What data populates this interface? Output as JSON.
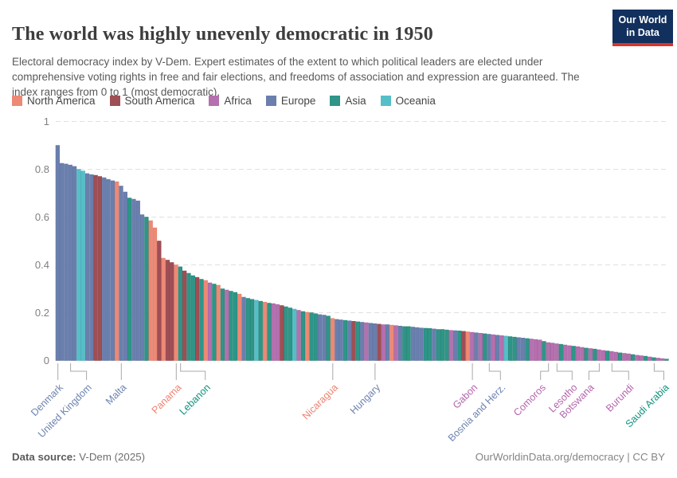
{
  "header": {
    "title": "The world was highly unevenly democratic in 1950",
    "subtitle": "Electoral democracy index by V-Dem. Expert estimates of the extent to which political leaders are elected under comprehensive voting rights in free and fair elections, and freedoms of association and expression are guaranteed. The index ranges from 0 to 1 (most democratic).",
    "logo": {
      "line1": "Our World",
      "line2": "in Data",
      "bg": "#12305e",
      "accent": "#d8352a"
    }
  },
  "legend": [
    {
      "code": "N",
      "label": "North America"
    },
    {
      "code": "S",
      "label": "South America"
    },
    {
      "code": "A",
      "label": "Africa"
    },
    {
      "code": "E",
      "label": "Europe"
    },
    {
      "code": "T",
      "label": "Asia"
    },
    {
      "code": "O",
      "label": "Oceania"
    }
  ],
  "colors": {
    "N": {
      "fill": "#ED8975",
      "stroke": "#DE7660",
      "text": "#ED8370"
    },
    "S": {
      "fill": "#9E4F55",
      "stroke": "#8A3B42",
      "text": "#9E4F55"
    },
    "A": {
      "fill": "#B470AF",
      "stroke": "#9F5A99",
      "text": "#B464AC"
    },
    "E": {
      "fill": "#6A7FAD",
      "stroke": "#58709F",
      "text": "#6D83AF"
    },
    "T": {
      "fill": "#2E9588",
      "stroke": "#20816F",
      "text": "#11917E"
    },
    "O": {
      "fill": "#55BFC7",
      "stroke": "#41A9B4",
      "text": "#4FB9C4"
    }
  },
  "chart_data": {
    "type": "bar",
    "title": "Electoral democracy index, 1950",
    "ylabel": "",
    "xlabel": "",
    "ylim": [
      0,
      1
    ],
    "yticks": [
      0,
      0.2,
      0.4,
      0.6,
      0.8,
      1
    ],
    "ytick_labels": [
      "0",
      "0.2",
      "0.4",
      "0.6",
      "0.8",
      "1"
    ],
    "grid": "horizontal-dashed",
    "legend_position": "top",
    "continent_codes": {
      "N": "North America",
      "S": "South America",
      "A": "Africa",
      "E": "Europe",
      "T": "Asia",
      "O": "Oceania"
    },
    "bars_format": [
      "index_value_0_to_1",
      "continent_code"
    ],
    "bars": [
      [
        0.9,
        "E"
      ],
      [
        0.825,
        "E"
      ],
      [
        0.822,
        "E"
      ],
      [
        0.818,
        "E"
      ],
      [
        0.812,
        "E"
      ],
      [
        0.8,
        "O"
      ],
      [
        0.793,
        "O"
      ],
      [
        0.782,
        "E"
      ],
      [
        0.778,
        "E"
      ],
      [
        0.775,
        "S"
      ],
      [
        0.77,
        "S"
      ],
      [
        0.765,
        "E"
      ],
      [
        0.758,
        "E"
      ],
      [
        0.752,
        "E"
      ],
      [
        0.748,
        "N"
      ],
      [
        0.73,
        "E"
      ],
      [
        0.705,
        "E"
      ],
      [
        0.68,
        "T"
      ],
      [
        0.675,
        "E"
      ],
      [
        0.668,
        "E"
      ],
      [
        0.61,
        "E"
      ],
      [
        0.6,
        "T"
      ],
      [
        0.585,
        "N"
      ],
      [
        0.555,
        "N"
      ],
      [
        0.5,
        "S"
      ],
      [
        0.428,
        "N"
      ],
      [
        0.42,
        "S"
      ],
      [
        0.41,
        "S"
      ],
      [
        0.4,
        "N"
      ],
      [
        0.392,
        "T"
      ],
      [
        0.375,
        "S"
      ],
      [
        0.365,
        "T"
      ],
      [
        0.355,
        "T"
      ],
      [
        0.348,
        "S"
      ],
      [
        0.34,
        "T"
      ],
      [
        0.335,
        "N"
      ],
      [
        0.325,
        "A"
      ],
      [
        0.32,
        "T"
      ],
      [
        0.315,
        "N"
      ],
      [
        0.3,
        "T"
      ],
      [
        0.295,
        "A"
      ],
      [
        0.29,
        "T"
      ],
      [
        0.285,
        "T"
      ],
      [
        0.278,
        "N"
      ],
      [
        0.265,
        "E"
      ],
      [
        0.26,
        "T"
      ],
      [
        0.256,
        "T"
      ],
      [
        0.252,
        "O"
      ],
      [
        0.248,
        "T"
      ],
      [
        0.244,
        "N"
      ],
      [
        0.24,
        "T"
      ],
      [
        0.238,
        "A"
      ],
      [
        0.234,
        "A"
      ],
      [
        0.23,
        "S"
      ],
      [
        0.225,
        "T"
      ],
      [
        0.22,
        "T"
      ],
      [
        0.215,
        "O"
      ],
      [
        0.21,
        "A"
      ],
      [
        0.205,
        "T"
      ],
      [
        0.202,
        "N"
      ],
      [
        0.2,
        "T"
      ],
      [
        0.196,
        "T"
      ],
      [
        0.192,
        "E"
      ],
      [
        0.19,
        "E"
      ],
      [
        0.186,
        "T"
      ],
      [
        0.176,
        "N"
      ],
      [
        0.172,
        "E"
      ],
      [
        0.17,
        "E"
      ],
      [
        0.168,
        "T"
      ],
      [
        0.166,
        "E"
      ],
      [
        0.164,
        "S"
      ],
      [
        0.162,
        "T"
      ],
      [
        0.16,
        "E"
      ],
      [
        0.158,
        "A"
      ],
      [
        0.156,
        "E"
      ],
      [
        0.154,
        "E"
      ],
      [
        0.152,
        "S"
      ],
      [
        0.15,
        "A"
      ],
      [
        0.15,
        "E"
      ],
      [
        0.148,
        "N"
      ],
      [
        0.146,
        "A"
      ],
      [
        0.144,
        "E"
      ],
      [
        0.142,
        "T"
      ],
      [
        0.142,
        "T"
      ],
      [
        0.14,
        "E"
      ],
      [
        0.138,
        "E"
      ],
      [
        0.136,
        "E"
      ],
      [
        0.135,
        "T"
      ],
      [
        0.134,
        "T"
      ],
      [
        0.132,
        "E"
      ],
      [
        0.13,
        "T"
      ],
      [
        0.13,
        "T"
      ],
      [
        0.128,
        "T"
      ],
      [
        0.126,
        "A"
      ],
      [
        0.125,
        "E"
      ],
      [
        0.124,
        "T"
      ],
      [
        0.122,
        "S"
      ],
      [
        0.12,
        "N"
      ],
      [
        0.118,
        "A"
      ],
      [
        0.116,
        "E"
      ],
      [
        0.114,
        "A"
      ],
      [
        0.112,
        "T"
      ],
      [
        0.11,
        "E"
      ],
      [
        0.108,
        "A"
      ],
      [
        0.106,
        "E"
      ],
      [
        0.104,
        "A"
      ],
      [
        0.102,
        "O"
      ],
      [
        0.1,
        "T"
      ],
      [
        0.098,
        "T"
      ],
      [
        0.096,
        "E"
      ],
      [
        0.094,
        "E"
      ],
      [
        0.092,
        "T"
      ],
      [
        0.09,
        "A"
      ],
      [
        0.088,
        "A"
      ],
      [
        0.086,
        "A"
      ],
      [
        0.08,
        "T"
      ],
      [
        0.075,
        "A"
      ],
      [
        0.073,
        "A"
      ],
      [
        0.07,
        "A"
      ],
      [
        0.068,
        "T"
      ],
      [
        0.065,
        "A"
      ],
      [
        0.062,
        "A"
      ],
      [
        0.06,
        "T"
      ],
      [
        0.058,
        "A"
      ],
      [
        0.055,
        "A"
      ],
      [
        0.052,
        "T"
      ],
      [
        0.05,
        "A"
      ],
      [
        0.048,
        "T"
      ],
      [
        0.045,
        "A"
      ],
      [
        0.042,
        "A"
      ],
      [
        0.04,
        "T"
      ],
      [
        0.038,
        "A"
      ],
      [
        0.035,
        "A"
      ],
      [
        0.032,
        "T"
      ],
      [
        0.03,
        "A"
      ],
      [
        0.028,
        "A"
      ],
      [
        0.025,
        "T"
      ],
      [
        0.022,
        "A"
      ],
      [
        0.02,
        "A"
      ],
      [
        0.018,
        "T"
      ],
      [
        0.015,
        "A"
      ],
      [
        0.012,
        "T"
      ],
      [
        0.01,
        "A"
      ],
      [
        0.008,
        "A"
      ],
      [
        0.006,
        "T"
      ]
    ],
    "labeled_countries": [
      {
        "name": "Denmark",
        "index": 1,
        "dx": 0
      },
      {
        "name": "United Kingdom",
        "index": 4,
        "dx": 20
      },
      {
        "name": "Malta",
        "index": 16,
        "dx": 0
      },
      {
        "name": "Panama",
        "index": 29,
        "dx": 0
      },
      {
        "name": "Lebanon",
        "index": 30,
        "dx": 31
      },
      {
        "name": "Nicaragua",
        "index": 66,
        "dx": 0
      },
      {
        "name": "Hungary",
        "index": 76,
        "dx": 0
      },
      {
        "name": "Gabon",
        "index": 99,
        "dx": 0
      },
      {
        "name": "Bosnia and Herz.",
        "index": 103,
        "dx": 14
      },
      {
        "name": "Comoros",
        "index": 117,
        "dx": -10
      },
      {
        "name": "Lesotho",
        "index": 119,
        "dx": 19
      },
      {
        "name": "Botswana",
        "index": 129,
        "dx": -13
      },
      {
        "name": "Burundi",
        "index": 132,
        "dx": 21
      },
      {
        "name": "Saudi Arabia",
        "index": 142,
        "dx": 12
      }
    ]
  },
  "footer": {
    "source_label": "Data source:",
    "source_value": "V-Dem (2025)",
    "credit": "OurWorldinData.org/democracy | CC BY"
  }
}
